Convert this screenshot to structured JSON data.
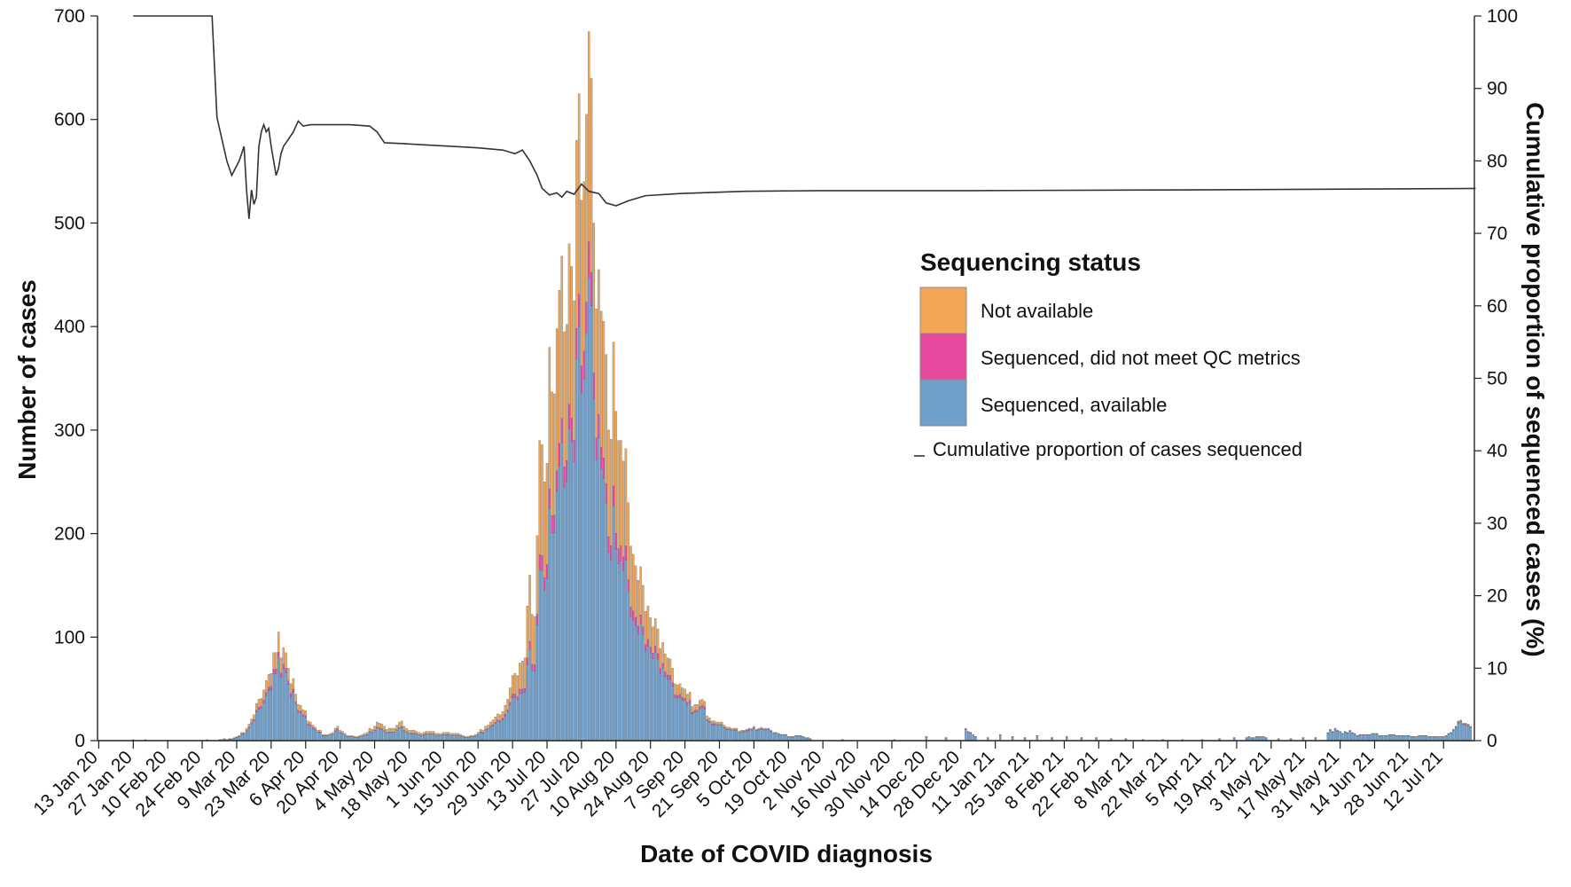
{
  "chart_data": {
    "type": "bar",
    "stacked": true,
    "xlabel": "Date of COVID diagnosis",
    "ylabel": "Number of cases",
    "y2label": "Cumulative proportion of sequenced cases (%)",
    "ylim": [
      0,
      700
    ],
    "y2lim": [
      0,
      100
    ],
    "yticks": [
      0,
      100,
      200,
      300,
      400,
      500,
      600,
      700
    ],
    "y2ticks": [
      0,
      10,
      20,
      30,
      40,
      50,
      60,
      70,
      80,
      90,
      100
    ],
    "x_start": "2020-01-13",
    "x_end": "2021-07-25",
    "x_tick_labels": [
      "13 Jan 20",
      "27 Jan 20",
      "10 Feb 20",
      "24 Feb 20",
      "9 Mar 20",
      "23 Mar 20",
      "6 Apr 20",
      "20 Apr 20",
      "4 May 20",
      "18 May 20",
      "1 Jun 20",
      "15 Jun 20",
      "29 Jun 20",
      "13 Jul 20",
      "27 Jul 20",
      "10 Aug 20",
      "24 Aug 20",
      "7 Sep 20",
      "21 Sep 20",
      "5 Oct 20",
      "19 Oct 20",
      "2 Nov 20",
      "16 Nov 20",
      "30 Nov 20",
      "14 Dec 20",
      "28 Dec 20",
      "11 Jan 21",
      "25 Jan 21",
      "8 Feb 21",
      "22 Feb 21",
      "8 Mar 21",
      "22 Mar 21",
      "5 Apr 21",
      "19 Apr 21",
      "3 May 21",
      "17 May 21",
      "31 May 21",
      "14 Jun 21",
      "28 Jun 21",
      "12 Jul 21"
    ],
    "legend": {
      "title": "Sequencing status",
      "placement": "center-right",
      "entries": [
        "Not available",
        "Sequenced, did not meet QC metrics",
        "Sequenced, available"
      ],
      "line_entry": "Cumulative proportion of cases sequenced"
    },
    "series_colors": {
      "Not available": "#f2a656",
      "Sequenced, did not meet QC metrics": "#e8479e",
      "Sequenced, available": "#6f9fcb"
    },
    "bar_series_names": [
      "Sequenced, available",
      "Sequenced, did not meet QC metrics",
      "Not available"
    ],
    "line_color": "#333333",
    "bar_outline_color": "#3d5a78",
    "total_points": [
      [
        "2020-01-27",
        1
      ],
      [
        "2020-02-01",
        1
      ],
      [
        "2020-02-26",
        1
      ],
      [
        "2020-03-02",
        1
      ],
      [
        "2020-03-06",
        2
      ],
      [
        "2020-03-08",
        3
      ],
      [
        "2020-03-10",
        5
      ],
      [
        "2020-03-13",
        12
      ],
      [
        "2020-03-16",
        25
      ],
      [
        "2020-03-18",
        40
      ],
      [
        "2020-03-21",
        58
      ],
      [
        "2020-03-23",
        65
      ],
      [
        "2020-03-25",
        85
      ],
      [
        "2020-03-26",
        105
      ],
      [
        "2020-03-27",
        80
      ],
      [
        "2020-03-28",
        90
      ],
      [
        "2020-03-30",
        70
      ],
      [
        "2020-04-01",
        60
      ],
      [
        "2020-04-03",
        35
      ],
      [
        "2020-04-05",
        30
      ],
      [
        "2020-04-08",
        18
      ],
      [
        "2020-04-11",
        10
      ],
      [
        "2020-04-14",
        6
      ],
      [
        "2020-04-17",
        8
      ],
      [
        "2020-04-19",
        14
      ],
      [
        "2020-04-23",
        5
      ],
      [
        "2020-04-27",
        4
      ],
      [
        "2020-05-01",
        8
      ],
      [
        "2020-05-05",
        18
      ],
      [
        "2020-05-08",
        14
      ],
      [
        "2020-05-12",
        12
      ],
      [
        "2020-05-15",
        19
      ],
      [
        "2020-05-18",
        10
      ],
      [
        "2020-05-22",
        8
      ],
      [
        "2020-05-26",
        9
      ],
      [
        "2020-05-30",
        7
      ],
      [
        "2020-06-03",
        8
      ],
      [
        "2020-06-07",
        7
      ],
      [
        "2020-06-10",
        4
      ],
      [
        "2020-06-14",
        6
      ],
      [
        "2020-06-18",
        14
      ],
      [
        "2020-06-21",
        20
      ],
      [
        "2020-06-24",
        25
      ],
      [
        "2020-06-27",
        40
      ],
      [
        "2020-06-30",
        65
      ],
      [
        "2020-07-02",
        75
      ],
      [
        "2020-07-04",
        80
      ],
      [
        "2020-07-06",
        160
      ],
      [
        "2020-07-08",
        120
      ],
      [
        "2020-07-10",
        290
      ],
      [
        "2020-07-12",
        250
      ],
      [
        "2020-07-14",
        380
      ],
      [
        "2020-07-16",
        335
      ],
      [
        "2020-07-18",
        435
      ],
      [
        "2020-07-20",
        395
      ],
      [
        "2020-07-22",
        480
      ],
      [
        "2020-07-24",
        425
      ],
      [
        "2020-07-26",
        625
      ],
      [
        "2020-07-28",
        540
      ],
      [
        "2020-07-30",
        685
      ],
      [
        "2020-08-01",
        500
      ],
      [
        "2020-08-03",
        455
      ],
      [
        "2020-08-05",
        405
      ],
      [
        "2020-08-07",
        300
      ],
      [
        "2020-08-09",
        385
      ],
      [
        "2020-08-11",
        290
      ],
      [
        "2020-08-13",
        270
      ],
      [
        "2020-08-15",
        230
      ],
      [
        "2020-08-17",
        180
      ],
      [
        "2020-08-19",
        155
      ],
      [
        "2020-08-21",
        150
      ],
      [
        "2020-08-23",
        130
      ],
      [
        "2020-08-25",
        110
      ],
      [
        "2020-08-27",
        108
      ],
      [
        "2020-08-29",
        95
      ],
      [
        "2020-08-31",
        80
      ],
      [
        "2020-09-02",
        70
      ],
      [
        "2020-09-05",
        55
      ],
      [
        "2020-09-08",
        45
      ],
      [
        "2020-09-11",
        35
      ],
      [
        "2020-09-14",
        40
      ],
      [
        "2020-09-17",
        22
      ],
      [
        "2020-09-20",
        18
      ],
      [
        "2020-09-23",
        15
      ],
      [
        "2020-09-26",
        12
      ],
      [
        "2020-09-30",
        10
      ],
      [
        "2020-10-04",
        12
      ],
      [
        "2020-10-08",
        13
      ],
      [
        "2020-10-12",
        10
      ],
      [
        "2020-10-16",
        6
      ],
      [
        "2020-10-20",
        4
      ],
      [
        "2020-10-24",
        5
      ],
      [
        "2020-10-28",
        2
      ],
      [
        "2020-11-10",
        1
      ],
      [
        "2020-12-01",
        1
      ],
      [
        "2020-12-14",
        4
      ],
      [
        "2020-12-22",
        3
      ],
      [
        "2020-12-30",
        12
      ],
      [
        "2021-01-03",
        4
      ],
      [
        "2021-01-08",
        3
      ],
      [
        "2021-01-13",
        6
      ],
      [
        "2021-01-18",
        4
      ],
      [
        "2021-01-23",
        3
      ],
      [
        "2021-01-28",
        5
      ],
      [
        "2021-02-03",
        3
      ],
      [
        "2021-02-09",
        4
      ],
      [
        "2021-02-15",
        3
      ],
      [
        "2021-02-21",
        3
      ],
      [
        "2021-02-27",
        2
      ],
      [
        "2021-03-05",
        2
      ],
      [
        "2021-03-12",
        1
      ],
      [
        "2021-03-20",
        1
      ],
      [
        "2021-03-28",
        1
      ],
      [
        "2021-04-05",
        1
      ],
      [
        "2021-04-12",
        2
      ],
      [
        "2021-04-18",
        3
      ],
      [
        "2021-04-23",
        3
      ],
      [
        "2021-04-27",
        4
      ],
      [
        "2021-05-01",
        3
      ],
      [
        "2021-05-06",
        2
      ],
      [
        "2021-05-11",
        2
      ],
      [
        "2021-05-16",
        3
      ],
      [
        "2021-05-21",
        3
      ],
      [
        "2021-05-26",
        8
      ],
      [
        "2021-05-29",
        12
      ],
      [
        "2021-06-01",
        7
      ],
      [
        "2021-06-04",
        10
      ],
      [
        "2021-06-07",
        5
      ],
      [
        "2021-06-10",
        6
      ],
      [
        "2021-06-14",
        7
      ],
      [
        "2021-06-18",
        5
      ],
      [
        "2021-06-21",
        6
      ],
      [
        "2021-06-25",
        5
      ],
      [
        "2021-06-29",
        4
      ],
      [
        "2021-07-03",
        5
      ],
      [
        "2021-07-07",
        4
      ],
      [
        "2021-07-11",
        4
      ],
      [
        "2021-07-15",
        8
      ],
      [
        "2021-07-17",
        14
      ],
      [
        "2021-07-19",
        20
      ],
      [
        "2021-07-21",
        17
      ],
      [
        "2021-07-23",
        14
      ]
    ],
    "avail_share_points": [
      [
        "2020-03-01",
        0.7
      ],
      [
        "2020-03-10",
        0.8
      ],
      [
        "2020-03-20",
        0.75
      ],
      [
        "2020-04-10",
        0.8
      ],
      [
        "2020-05-10",
        0.65
      ],
      [
        "2020-06-10",
        0.72
      ],
      [
        "2020-06-25",
        0.72
      ],
      [
        "2020-07-06",
        0.55
      ],
      [
        "2020-07-20",
        0.62
      ],
      [
        "2020-08-01",
        0.66
      ],
      [
        "2020-08-10",
        0.58
      ],
      [
        "2020-08-25",
        0.72
      ],
      [
        "2020-09-15",
        0.8
      ],
      [
        "2020-10-15",
        0.88
      ],
      [
        "2021-07-25",
        0.9
      ]
    ],
    "qc_share": 0.05,
    "cumulative_line": [
      [
        "2020-01-27",
        100
      ],
      [
        "2020-02-28",
        100
      ],
      [
        "2020-03-01",
        86
      ],
      [
        "2020-03-03",
        83
      ],
      [
        "2020-03-05",
        80
      ],
      [
        "2020-03-07",
        78
      ],
      [
        "2020-03-10",
        80
      ],
      [
        "2020-03-12",
        82
      ],
      [
        "2020-03-13",
        76
      ],
      [
        "2020-03-14",
        72
      ],
      [
        "2020-03-15",
        76
      ],
      [
        "2020-03-16",
        74
      ],
      [
        "2020-03-17",
        75
      ],
      [
        "2020-03-18",
        82
      ],
      [
        "2020-03-19",
        84
      ],
      [
        "2020-03-20",
        85
      ],
      [
        "2020-03-21",
        84
      ],
      [
        "2020-03-22",
        84.5
      ],
      [
        "2020-03-23",
        82
      ],
      [
        "2020-03-24",
        80
      ],
      [
        "2020-03-25",
        78
      ],
      [
        "2020-03-26",
        79
      ],
      [
        "2020-03-27",
        81
      ],
      [
        "2020-03-28",
        82
      ],
      [
        "2020-04-01",
        84
      ],
      [
        "2020-04-03",
        85.5
      ],
      [
        "2020-04-05",
        84.8
      ],
      [
        "2020-04-08",
        85
      ],
      [
        "2020-04-14",
        85
      ],
      [
        "2020-04-24",
        85
      ],
      [
        "2020-05-02",
        84.8
      ],
      [
        "2020-05-05",
        84
      ],
      [
        "2020-05-08",
        82.5
      ],
      [
        "2020-05-15",
        82.4
      ],
      [
        "2020-05-25",
        82.2
      ],
      [
        "2020-06-05",
        82
      ],
      [
        "2020-06-15",
        81.8
      ],
      [
        "2020-06-25",
        81.5
      ],
      [
        "2020-06-30",
        81
      ],
      [
        "2020-07-03",
        81.5
      ],
      [
        "2020-07-06",
        80
      ],
      [
        "2020-07-09",
        78
      ],
      [
        "2020-07-11",
        76.2
      ],
      [
        "2020-07-14",
        75.3
      ],
      [
        "2020-07-17",
        75.6
      ],
      [
        "2020-07-19",
        75
      ],
      [
        "2020-07-21",
        75.8
      ],
      [
        "2020-07-24",
        75.4
      ],
      [
        "2020-07-27",
        76.8
      ],
      [
        "2020-07-30",
        75.8
      ],
      [
        "2020-08-03",
        75.5
      ],
      [
        "2020-08-06",
        74.2
      ],
      [
        "2020-08-10",
        73.8
      ],
      [
        "2020-08-15",
        74.5
      ],
      [
        "2020-08-22",
        75.2
      ],
      [
        "2020-09-05",
        75.5
      ],
      [
        "2020-10-01",
        75.8
      ],
      [
        "2020-11-01",
        75.9
      ],
      [
        "2021-01-01",
        75.9
      ],
      [
        "2021-04-01",
        76
      ],
      [
        "2021-07-25",
        76.2
      ]
    ]
  }
}
